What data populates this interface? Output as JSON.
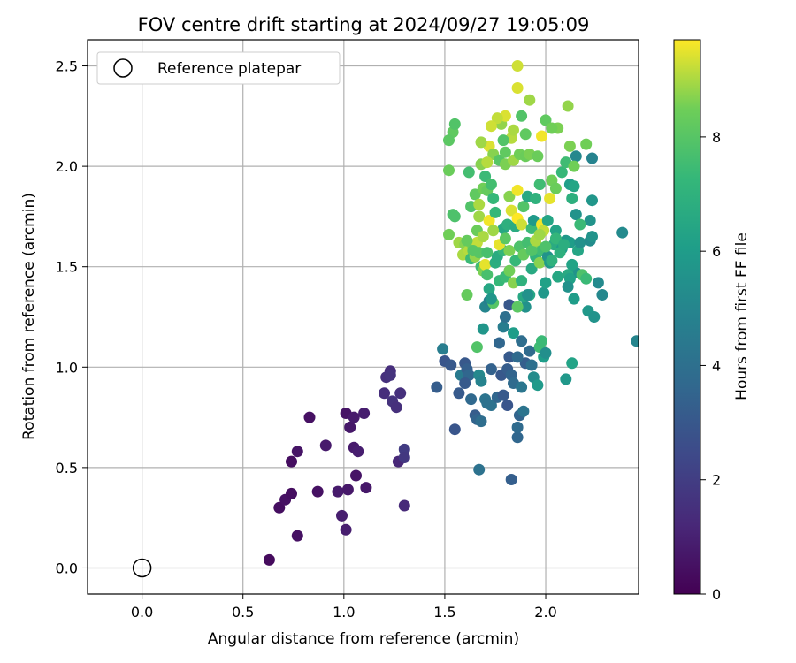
{
  "chart_data": {
    "type": "scatter",
    "title": "FOV centre drift starting at 2024/09/27 19:05:09",
    "xlabel": "Angular distance from reference (arcmin)",
    "ylabel": "Rotation from reference (arcmin)",
    "xlim": [
      -0.27,
      2.46
    ],
    "ylim": [
      -0.13,
      2.63
    ],
    "xticks": [
      "0.0",
      "0.5",
      "1.0",
      "1.5",
      "2.0"
    ],
    "xtick_values": [
      0.0,
      0.5,
      1.0,
      1.5,
      2.0
    ],
    "yticks": [
      "0.0",
      "0.5",
      "1.0",
      "1.5",
      "2.0",
      "2.5"
    ],
    "ytick_values": [
      0.0,
      0.5,
      1.0,
      1.5,
      2.0,
      2.5
    ],
    "grid": true,
    "legend": {
      "placement": "top-left",
      "label": "Reference platepar"
    },
    "reference_point": {
      "x": 0.0,
      "y": 0.0
    },
    "colorbar": {
      "label": "Hours from first FF file",
      "min": 0,
      "max": 9.7,
      "ticks": [
        "0",
        "2",
        "4",
        "6",
        "8"
      ],
      "tick_values": [
        0,
        2,
        4,
        6,
        8
      ],
      "colormap": "viridis"
    },
    "points": [
      [
        0.63,
        0.04,
        0.3
      ],
      [
        0.68,
        0.3,
        0.4
      ],
      [
        0.71,
        0.34,
        0.5
      ],
      [
        0.74,
        0.37,
        0.4
      ],
      [
        0.77,
        0.16,
        0.5
      ],
      [
        0.74,
        0.53,
        0.4
      ],
      [
        0.77,
        0.58,
        0.6
      ],
      [
        0.83,
        0.75,
        0.5
      ],
      [
        0.87,
        0.38,
        0.5
      ],
      [
        0.91,
        0.61,
        0.8
      ],
      [
        0.97,
        0.38,
        0.8
      ],
      [
        0.99,
        0.26,
        0.9
      ],
      [
        1.01,
        0.19,
        0.9
      ],
      [
        1.02,
        0.39,
        0.7
      ],
      [
        1.01,
        0.77,
        0.6
      ],
      [
        1.03,
        0.7,
        0.7
      ],
      [
        1.05,
        0.75,
        0.8
      ],
      [
        1.05,
        0.6,
        0.8
      ],
      [
        1.07,
        0.58,
        0.9
      ],
      [
        1.06,
        0.46,
        0.6
      ],
      [
        1.1,
        0.77,
        0.9
      ],
      [
        1.11,
        0.4,
        0.7
      ],
      [
        1.2,
        0.87,
        1.4
      ],
      [
        1.21,
        0.95,
        1.5
      ],
      [
        1.23,
        0.98,
        1.4
      ],
      [
        1.23,
        0.96,
        1.6
      ],
      [
        1.24,
        0.83,
        1.6
      ],
      [
        1.26,
        0.8,
        1.5
      ],
      [
        1.28,
        0.87,
        1.5
      ],
      [
        1.27,
        0.53,
        1.2
      ],
      [
        1.3,
        0.59,
        1.9
      ],
      [
        1.3,
        0.55,
        1.8
      ],
      [
        1.3,
        0.31,
        1.3
      ],
      [
        1.46,
        0.9,
        3.2
      ],
      [
        1.49,
        1.09,
        4.6
      ],
      [
        1.5,
        1.03,
        2.9
      ],
      [
        1.53,
        1.01,
        3.0
      ],
      [
        1.55,
        0.69,
        2.9
      ],
      [
        1.57,
        0.87,
        3.1
      ],
      [
        1.58,
        0.96,
        4.5
      ],
      [
        1.6,
        1.02,
        3.0
      ],
      [
        1.61,
        0.99,
        3.3
      ],
      [
        1.62,
        0.96,
        3.6
      ],
      [
        1.6,
        0.92,
        3.1
      ],
      [
        1.63,
        0.84,
        3.7
      ],
      [
        1.65,
        0.76,
        3.2
      ],
      [
        1.66,
        0.74,
        3.5
      ],
      [
        1.67,
        0.96,
        5.1
      ],
      [
        1.68,
        0.93,
        4.9
      ],
      [
        1.7,
        0.84,
        4.2
      ],
      [
        1.71,
        0.82,
        4.1
      ],
      [
        1.73,
        0.81,
        4.1
      ],
      [
        1.73,
        0.99,
        3.4
      ],
      [
        1.67,
        0.49,
        4.1
      ],
      [
        1.68,
        0.73,
        3.9
      ],
      [
        1.76,
        0.85,
        3.6
      ],
      [
        1.78,
        0.96,
        3.0
      ],
      [
        1.79,
        0.86,
        3.1
      ],
      [
        1.81,
        0.81,
        2.9
      ],
      [
        1.81,
        0.99,
        3.2
      ],
      [
        1.82,
        1.05,
        3.1
      ],
      [
        1.83,
        0.96,
        3.5
      ],
      [
        1.84,
        0.92,
        3.8
      ],
      [
        1.86,
        0.65,
        3.6
      ],
      [
        1.86,
        0.7,
        3.8
      ],
      [
        1.87,
        0.76,
        3.5
      ],
      [
        1.88,
        0.9,
        4.3
      ],
      [
        1.89,
        0.78,
        4.2
      ],
      [
        1.9,
        1.02,
        3.3
      ],
      [
        1.92,
        1.08,
        3.8
      ],
      [
        1.93,
        1.01,
        4.0
      ],
      [
        1.94,
        0.95,
        5.3
      ],
      [
        1.96,
        0.91,
        5.9
      ],
      [
        1.83,
        0.44,
        3.3
      ],
      [
        1.66,
        1.1,
        7.9
      ],
      [
        1.69,
        1.19,
        5.7
      ],
      [
        1.7,
        1.3,
        5.0
      ],
      [
        1.72,
        1.33,
        4.7
      ],
      [
        1.74,
        1.32,
        8.0
      ],
      [
        1.77,
        1.12,
        3.6
      ],
      [
        1.79,
        1.2,
        4.6
      ],
      [
        1.8,
        1.25,
        4.0
      ],
      [
        1.82,
        1.31,
        3.0
      ],
      [
        1.84,
        1.17,
        6.0
      ],
      [
        1.86,
        1.05,
        3.8
      ],
      [
        1.88,
        1.13,
        3.9
      ],
      [
        1.9,
        1.3,
        5.5
      ],
      [
        1.92,
        1.36,
        6.4
      ],
      [
        1.97,
        1.1,
        7.5
      ],
      [
        1.98,
        1.13,
        7.4
      ],
      [
        1.99,
        1.05,
        6.0
      ],
      [
        2.0,
        1.07,
        5.4
      ],
      [
        2.1,
        0.94,
        5.8
      ],
      [
        2.13,
        1.02,
        6.3
      ],
      [
        2.45,
        1.13,
        5.0
      ],
      [
        1.52,
        1.66,
        8.5
      ],
      [
        1.54,
        1.76,
        7.8
      ],
      [
        1.57,
        1.62,
        8.9
      ],
      [
        1.59,
        1.56,
        9.0
      ],
      [
        1.6,
        1.61,
        8.7
      ],
      [
        1.61,
        1.36,
        8.3
      ],
      [
        1.62,
        1.58,
        9.1
      ],
      [
        1.63,
        1.54,
        7.4
      ],
      [
        1.64,
        1.6,
        8.4
      ],
      [
        1.65,
        1.55,
        8.8
      ],
      [
        1.66,
        1.62,
        9.2
      ],
      [
        1.67,
        1.57,
        8.0
      ],
      [
        1.68,
        1.5,
        7.5
      ],
      [
        1.69,
        1.48,
        8.6
      ],
      [
        1.7,
        1.51,
        9.5
      ],
      [
        1.71,
        1.46,
        7.7
      ],
      [
        1.72,
        1.39,
        6.5
      ],
      [
        1.73,
        1.34,
        5.7
      ],
      [
        1.75,
        1.52,
        6.8
      ],
      [
        1.76,
        1.55,
        6.7
      ],
      [
        1.77,
        1.43,
        7.3
      ],
      [
        1.79,
        1.58,
        7.2
      ],
      [
        1.8,
        1.45,
        7.4
      ],
      [
        1.82,
        1.48,
        8.5
      ],
      [
        1.84,
        1.42,
        8.7
      ],
      [
        1.86,
        1.3,
        8.1
      ],
      [
        1.88,
        1.43,
        7.0
      ],
      [
        1.89,
        1.35,
        6.5
      ],
      [
        1.91,
        1.36,
        5.5
      ],
      [
        1.93,
        1.49,
        6.6
      ],
      [
        1.95,
        1.55,
        7.1
      ],
      [
        1.96,
        1.6,
        8.6
      ],
      [
        1.97,
        1.52,
        8.7
      ],
      [
        1.98,
        1.58,
        7.5
      ],
      [
        1.99,
        1.37,
        5.8
      ],
      [
        2.0,
        1.42,
        6.2
      ],
      [
        2.01,
        1.55,
        5.6
      ],
      [
        2.02,
        1.52,
        5.9
      ],
      [
        2.04,
        1.61,
        6.7
      ],
      [
        2.05,
        1.68,
        6.3
      ],
      [
        2.06,
        1.45,
        6.5
      ],
      [
        2.08,
        1.59,
        6.0
      ],
      [
        2.1,
        1.63,
        5.8
      ],
      [
        2.12,
        1.62,
        6.0
      ],
      [
        2.14,
        1.34,
        6.0
      ],
      [
        2.15,
        1.47,
        5.6
      ],
      [
        2.16,
        1.58,
        6.4
      ],
      [
        2.17,
        1.62,
        5.5
      ],
      [
        2.18,
        1.46,
        7.8
      ],
      [
        2.2,
        1.44,
        7.4
      ],
      [
        2.21,
        1.28,
        5.8
      ],
      [
        2.22,
        1.63,
        5.3
      ],
      [
        2.23,
        1.65,
        5.6
      ],
      [
        2.24,
        1.25,
        5.6
      ],
      [
        2.26,
        1.42,
        5.2
      ],
      [
        2.28,
        1.36,
        5.1
      ],
      [
        2.38,
        1.67,
        5.2
      ],
      [
        2.23,
        1.83,
        5.7
      ],
      [
        2.22,
        1.73,
        5.6
      ],
      [
        2.23,
        2.04,
        4.9
      ],
      [
        2.15,
        2.05,
        5.1
      ],
      [
        2.12,
        1.91,
        6.1
      ],
      [
        2.13,
        1.84,
        6.9
      ],
      [
        2.14,
        1.9,
        6.4
      ],
      [
        2.15,
        1.76,
        5.6
      ],
      [
        2.13,
        1.51,
        6.3
      ],
      [
        2.11,
        1.46,
        6.6
      ],
      [
        2.12,
        1.44,
        6.2
      ],
      [
        2.11,
        1.4,
        5.5
      ],
      [
        1.52,
        1.98,
        8.4
      ],
      [
        1.54,
        2.17,
        8.2
      ],
      [
        1.55,
        2.21,
        7.9
      ],
      [
        1.52,
        2.13,
        8.1
      ],
      [
        1.55,
        1.75,
        7.8
      ],
      [
        1.61,
        1.63,
        8.3
      ],
      [
        1.62,
        1.97,
        7.6
      ],
      [
        1.63,
        1.8,
        7.9
      ],
      [
        1.65,
        1.86,
        8.2
      ],
      [
        1.67,
        1.81,
        9.0
      ],
      [
        1.67,
        1.75,
        8.9
      ],
      [
        1.68,
        2.01,
        8.7
      ],
      [
        1.69,
        1.89,
        8.5
      ],
      [
        1.7,
        1.95,
        7.4
      ],
      [
        1.71,
        1.88,
        8.3
      ],
      [
        1.72,
        1.73,
        9.6
      ],
      [
        1.72,
        2.1,
        9.4
      ],
      [
        1.73,
        1.91,
        7.6
      ],
      [
        1.74,
        2.06,
        8.7
      ],
      [
        1.74,
        1.84,
        7.3
      ],
      [
        1.75,
        1.77,
        7.3
      ],
      [
        1.77,
        2.03,
        8.0
      ],
      [
        1.78,
        2.21,
        8.8
      ],
      [
        1.79,
        1.69,
        6.5
      ],
      [
        1.8,
        2.01,
        8.6
      ],
      [
        1.8,
        2.07,
        8.2
      ],
      [
        1.81,
        1.71,
        6.9
      ],
      [
        1.82,
        1.85,
        8.7
      ],
      [
        1.83,
        1.78,
        9.4
      ],
      [
        1.84,
        2.03,
        8.9
      ],
      [
        1.85,
        1.7,
        6.7
      ],
      [
        1.86,
        1.88,
        9.6
      ],
      [
        1.86,
        1.74,
        9.7
      ],
      [
        1.87,
        2.06,
        8.5
      ],
      [
        1.88,
        1.71,
        9.3
      ],
      [
        1.89,
        1.8,
        7.9
      ],
      [
        1.9,
        2.05,
        8.4
      ],
      [
        1.91,
        1.85,
        6.6
      ],
      [
        1.92,
        2.06,
        8.6
      ],
      [
        1.93,
        1.69,
        7.4
      ],
      [
        1.94,
        1.73,
        5.9
      ],
      [
        1.95,
        1.84,
        7.0
      ],
      [
        1.96,
        2.05,
        8.4
      ],
      [
        1.97,
        1.91,
        7.5
      ],
      [
        1.98,
        1.71,
        9.6
      ],
      [
        1.99,
        1.68,
        9.2
      ],
      [
        2.01,
        1.73,
        6.4
      ],
      [
        2.02,
        1.84,
        9.5
      ],
      [
        2.03,
        1.93,
        8.5
      ],
      [
        2.05,
        1.89,
        8.4
      ],
      [
        2.06,
        2.19,
        8.6
      ],
      [
        2.08,
        1.97,
        7.3
      ],
      [
        2.1,
        2.02,
        7.5
      ],
      [
        2.12,
        2.1,
        8.6
      ],
      [
        2.14,
        2.0,
        8.5
      ],
      [
        2.17,
        1.71,
        7.4
      ],
      [
        2.2,
        2.11,
        8.5
      ],
      [
        1.83,
        2.14,
        9.1
      ],
      [
        1.79,
        2.13,
        7.9
      ],
      [
        1.8,
        2.25,
        9.4
      ],
      [
        1.86,
        2.39,
        9.4
      ],
      [
        1.86,
        2.5,
        9.3
      ],
      [
        1.88,
        2.25,
        7.9
      ],
      [
        1.9,
        2.16,
        8.2
      ],
      [
        1.92,
        2.33,
        8.9
      ],
      [
        1.98,
        2.15,
        9.6
      ],
      [
        2.0,
        2.23,
        8.2
      ],
      [
        2.03,
        2.19,
        8.5
      ],
      [
        2.11,
        2.3,
        8.8
      ],
      [
        1.84,
        2.18,
        9.0
      ],
      [
        1.76,
        2.24,
        9.2
      ],
      [
        1.73,
        2.2,
        9.3
      ],
      [
        1.68,
        2.12,
        8.9
      ],
      [
        1.71,
        2.02,
        9.1
      ],
      [
        1.64,
        1.58,
        8.0
      ],
      [
        1.66,
        1.68,
        8.4
      ],
      [
        1.69,
        1.65,
        9.0
      ],
      [
        1.71,
        1.57,
        7.7
      ],
      [
        1.74,
        1.68,
        8.9
      ],
      [
        1.77,
        1.61,
        9.5
      ],
      [
        1.8,
        1.64,
        8.1
      ],
      [
        1.82,
        1.58,
        8.6
      ],
      [
        1.85,
        1.53,
        7.3
      ],
      [
        1.87,
        1.6,
        7.8
      ],
      [
        1.89,
        1.56,
        8.3
      ],
      [
        1.91,
        1.62,
        7.6
      ],
      [
        1.93,
        1.58,
        7.9
      ],
      [
        1.95,
        1.63,
        9.0
      ],
      [
        1.97,
        1.66,
        8.9
      ],
      [
        2.0,
        1.6,
        7.8
      ],
      [
        2.03,
        1.53,
        7.0
      ],
      [
        2.05,
        1.64,
        7.2
      ],
      [
        2.07,
        1.57,
        6.9
      ],
      [
        2.09,
        1.61,
        6.8
      ]
    ]
  }
}
